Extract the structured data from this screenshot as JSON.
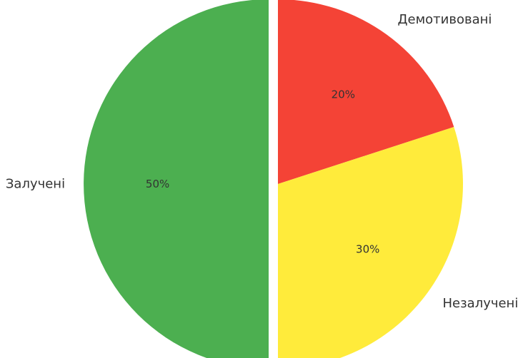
{
  "chart_data": {
    "type": "pie",
    "title": "",
    "start_angle_deg": 90,
    "direction": "clockwise",
    "slices": [
      {
        "label": "Демотивовані",
        "value": 20,
        "pct_label": "20%",
        "color": "#F44336",
        "exploded": false
      },
      {
        "label": "Незалучені",
        "value": 30,
        "pct_label": "30%",
        "color": "#FFEB3B",
        "exploded": false
      },
      {
        "label": "Залучені",
        "value": 50,
        "pct_label": "50%",
        "color": "#4CAF50",
        "exploded": true
      }
    ]
  }
}
